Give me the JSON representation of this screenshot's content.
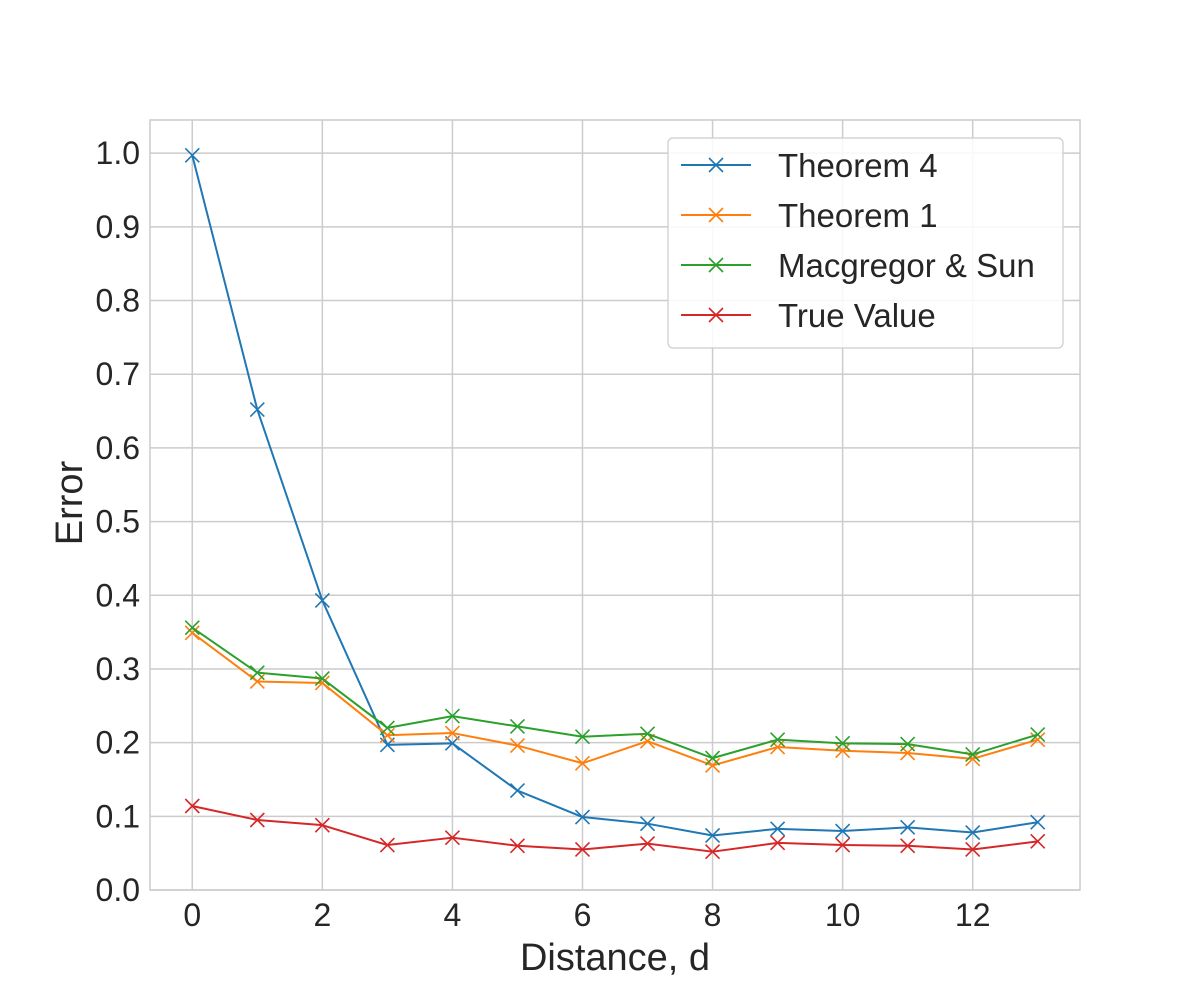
{
  "chart_data": {
    "type": "line",
    "title": "",
    "xlabel": "Distance, d",
    "ylabel": "Error",
    "xlim": [
      -0.65,
      13.65
    ],
    "ylim": [
      0.0,
      1.045
    ],
    "xticks": [
      0,
      2,
      4,
      6,
      8,
      10,
      12
    ],
    "yticks": [
      0.0,
      0.1,
      0.2,
      0.3,
      0.4,
      0.5,
      0.6,
      0.7,
      0.8,
      0.9,
      1.0
    ],
    "grid": true,
    "legend_position": "top-right",
    "marker": "x",
    "x": [
      0,
      1,
      2,
      3,
      4,
      5,
      6,
      7,
      8,
      9,
      10,
      11,
      12,
      13
    ],
    "series": [
      {
        "name": "Theorem 4",
        "color": "#1f77b4",
        "values": [
          0.997,
          0.652,
          0.393,
          0.197,
          0.199,
          0.135,
          0.099,
          0.09,
          0.074,
          0.083,
          0.08,
          0.085,
          0.078,
          0.092
        ]
      },
      {
        "name": "Theorem 1",
        "color": "#ff7f0e",
        "values": [
          0.349,
          0.283,
          0.281,
          0.21,
          0.213,
          0.196,
          0.172,
          0.202,
          0.169,
          0.194,
          0.189,
          0.186,
          0.178,
          0.204
        ]
      },
      {
        "name": "Macgregor & Sun",
        "color": "#2ca02c",
        "values": [
          0.356,
          0.295,
          0.287,
          0.22,
          0.236,
          0.222,
          0.208,
          0.212,
          0.179,
          0.204,
          0.199,
          0.198,
          0.184,
          0.211
        ]
      },
      {
        "name": "True Value",
        "color": "#d62728",
        "values": [
          0.114,
          0.095,
          0.088,
          0.061,
          0.071,
          0.06,
          0.055,
          0.063,
          0.052,
          0.064,
          0.061,
          0.06,
          0.055,
          0.066
        ]
      }
    ]
  }
}
